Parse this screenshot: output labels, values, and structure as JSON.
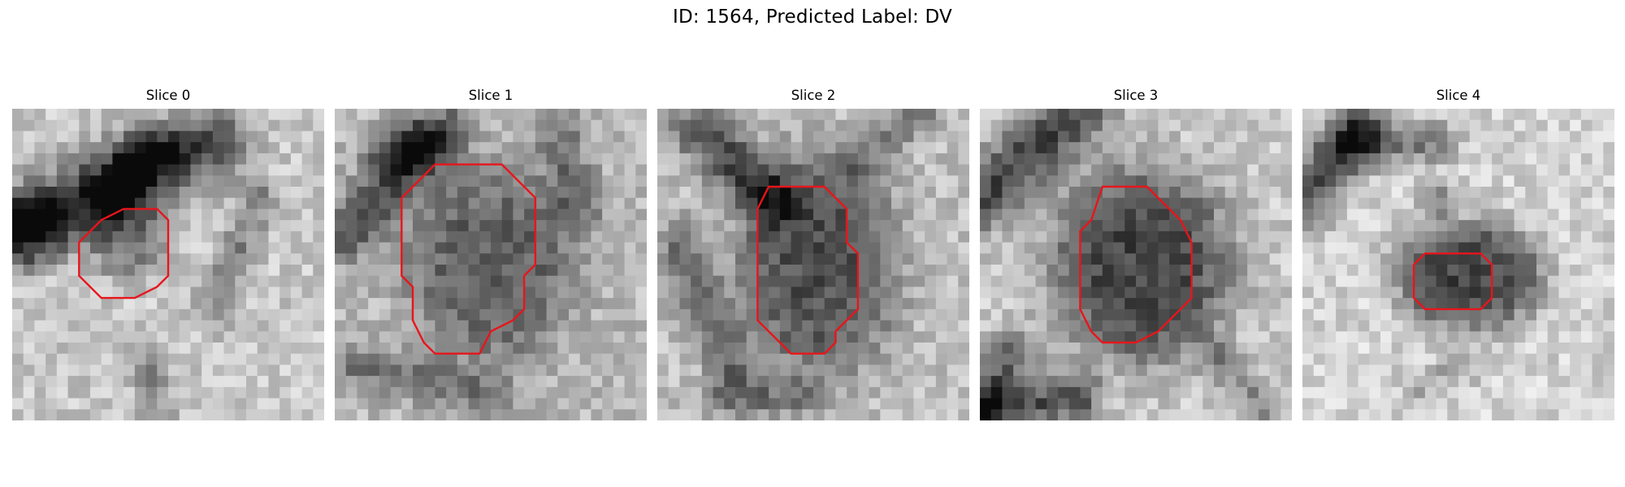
{
  "figure": {
    "title": "ID: 1564, Predicted Label: DV"
  },
  "panels": [
    {
      "title": "Slice 0"
    },
    {
      "title": "Slice 1"
    },
    {
      "title": "Slice 2"
    },
    {
      "title": "Slice 3"
    },
    {
      "title": "Slice 4"
    }
  ],
  "colors": {
    "contour": "#e8151b",
    "background": "#ffffff"
  }
}
